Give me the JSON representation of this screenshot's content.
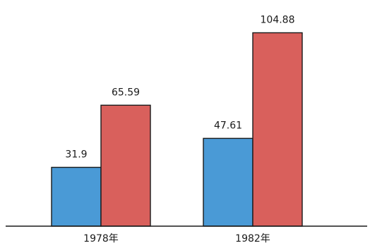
{
  "chart_data": {
    "type": "bar",
    "categories": [
      "1978年",
      "1982年"
    ],
    "series": [
      {
        "values": [
          31.9,
          47.61
        ],
        "color": "#4a9ad6"
      },
      {
        "values": [
          65.59,
          104.88
        ],
        "color": "#d9605c"
      }
    ],
    "value_labels": [
      [
        "31.9",
        "47.61"
      ],
      [
        "65.59",
        "104.88"
      ]
    ],
    "ylim": [
      0,
      115
    ],
    "grid": false,
    "legend": "none",
    "y_axis_visible": false
  }
}
